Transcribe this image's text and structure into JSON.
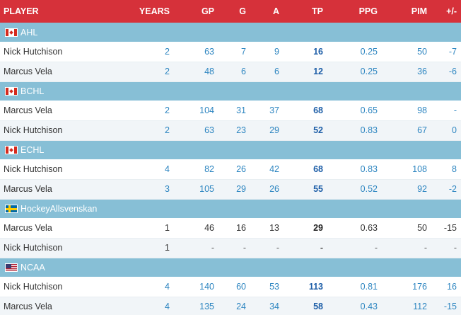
{
  "columns": {
    "player": "PLAYER",
    "years": "YEARS",
    "gp": "GP",
    "g": "G",
    "a": "A",
    "tp": "TP",
    "ppg": "PPG",
    "pim": "PIM",
    "pm": "+/-"
  },
  "leagues": [
    {
      "name": "AHL",
      "flag": "canada-flag",
      "rows": [
        {
          "player": "Nick Hutchison",
          "years": "2",
          "gp": "63",
          "g": "7",
          "a": "9",
          "tp": "16",
          "ppg": "0.25",
          "pim": "50",
          "pm": "-7"
        },
        {
          "player": "Marcus Vela",
          "years": "2",
          "gp": "48",
          "g": "6",
          "a": "6",
          "tp": "12",
          "ppg": "0.25",
          "pim": "36",
          "pm": "-6"
        }
      ]
    },
    {
      "name": "BCHL",
      "flag": "canada-flag",
      "rows": [
        {
          "player": "Marcus Vela",
          "years": "2",
          "gp": "104",
          "g": "31",
          "a": "37",
          "tp": "68",
          "ppg": "0.65",
          "pim": "98",
          "pm": "-"
        },
        {
          "player": "Nick Hutchison",
          "years": "2",
          "gp": "63",
          "g": "23",
          "a": "29",
          "tp": "52",
          "ppg": "0.83",
          "pim": "67",
          "pm": "0"
        }
      ]
    },
    {
      "name": "ECHL",
      "flag": "canada-flag",
      "rows": [
        {
          "player": "Nick Hutchison",
          "years": "4",
          "gp": "82",
          "g": "26",
          "a": "42",
          "tp": "68",
          "ppg": "0.83",
          "pim": "108",
          "pm": "8"
        },
        {
          "player": "Marcus Vela",
          "years": "3",
          "gp": "105",
          "g": "29",
          "a": "26",
          "tp": "55",
          "ppg": "0.52",
          "pim": "92",
          "pm": "-2"
        }
      ]
    },
    {
      "name": "HockeyAllsvenskan",
      "flag": "sweden-flag",
      "plain": true,
      "rows": [
        {
          "player": "Marcus Vela",
          "years": "1",
          "gp": "46",
          "g": "16",
          "a": "13",
          "tp": "29",
          "ppg": "0.63",
          "pim": "50",
          "pm": "-15"
        },
        {
          "player": "Nick Hutchison",
          "years": "1",
          "gp": "-",
          "g": "-",
          "a": "-",
          "tp": "-",
          "ppg": "-",
          "pim": "-",
          "pm": "-"
        }
      ]
    },
    {
      "name": "NCAA",
      "flag": "usa-flag",
      "rows": [
        {
          "player": "Nick Hutchison",
          "years": "4",
          "gp": "140",
          "g": "60",
          "a": "53",
          "tp": "113",
          "ppg": "0.81",
          "pim": "176",
          "pm": "16"
        },
        {
          "player": "Marcus Vela",
          "years": "4",
          "gp": "135",
          "g": "24",
          "a": "34",
          "tp": "58",
          "ppg": "0.43",
          "pim": "112",
          "pm": "-15"
        }
      ]
    }
  ]
}
